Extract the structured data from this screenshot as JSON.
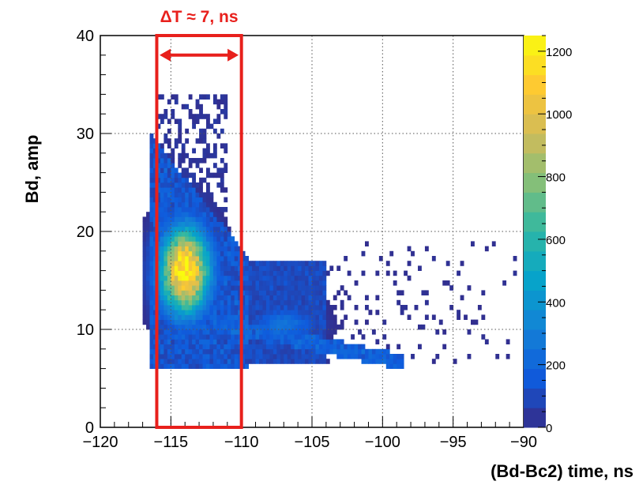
{
  "chart_data": {
    "type": "heatmap",
    "xlabel": "(Bd-Bc2) time, ns",
    "ylabel": "Bd, amp",
    "xlim": [
      -120,
      -90
    ],
    "ylim": [
      0,
      40
    ],
    "zlim": [
      0,
      1250
    ],
    "x_ticks": [
      -120,
      -115,
      -110,
      -105,
      -100,
      -95,
      -90
    ],
    "y_ticks": [
      0,
      10,
      20,
      30,
      40
    ],
    "z_ticks": [
      0,
      200,
      400,
      600,
      800,
      1000,
      1200
    ],
    "grid": true,
    "colorscale": "blue-green-yellow (kBird)",
    "hotspots": [
      {
        "x": -114,
        "y": 16,
        "peak": 1200
      },
      {
        "x": -107,
        "y": 10.5,
        "peak": 250
      },
      {
        "x": -112,
        "y": 8,
        "peak": 200
      }
    ],
    "annotation": {
      "text": "ΔT ≈ 7, ns",
      "box_x": [
        -116,
        -110
      ],
      "box_y": [
        0,
        40
      ],
      "arrow_x": [
        -115.8,
        -110.2
      ],
      "arrow_y": 38,
      "color": "#e8201c"
    }
  }
}
